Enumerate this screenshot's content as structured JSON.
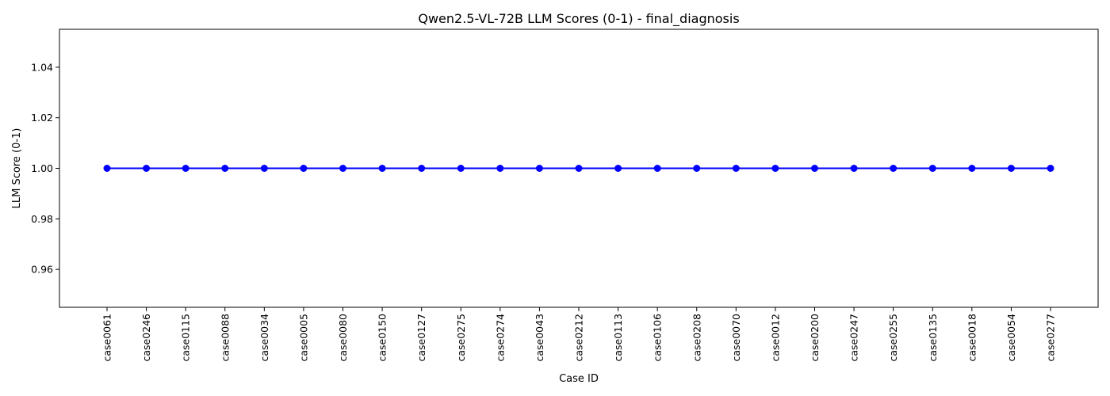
{
  "chart_data": {
    "type": "line",
    "title": "Qwen2.5-VL-72B LLM Scores (0-1) - final_diagnosis",
    "xlabel": "Case ID",
    "ylabel": "LLM Score (0-1)",
    "ylim": [
      0.945,
      1.055
    ],
    "yticks": [
      0.96,
      0.98,
      1.0,
      1.02,
      1.04
    ],
    "ytick_labels": [
      "0.96",
      "0.98",
      "1.00",
      "1.02",
      "1.04"
    ],
    "grid": false,
    "categories": [
      "case0061",
      "case0246",
      "case0115",
      "case0088",
      "case0034",
      "case0005",
      "case0080",
      "case0150",
      "case0127",
      "case0275",
      "case0274",
      "case0043",
      "case0212",
      "case0113",
      "case0106",
      "case0208",
      "case0070",
      "case0012",
      "case0200",
      "case0247",
      "case0255",
      "case0135",
      "case0018",
      "case0054",
      "case0277"
    ],
    "series": [
      {
        "name": "LLM Score",
        "color": "#0000ff",
        "marker": "circle",
        "values": [
          1,
          1,
          1,
          1,
          1,
          1,
          1,
          1,
          1,
          1,
          1,
          1,
          1,
          1,
          1,
          1,
          1,
          1,
          1,
          1,
          1,
          1,
          1,
          1,
          1
        ]
      }
    ]
  }
}
